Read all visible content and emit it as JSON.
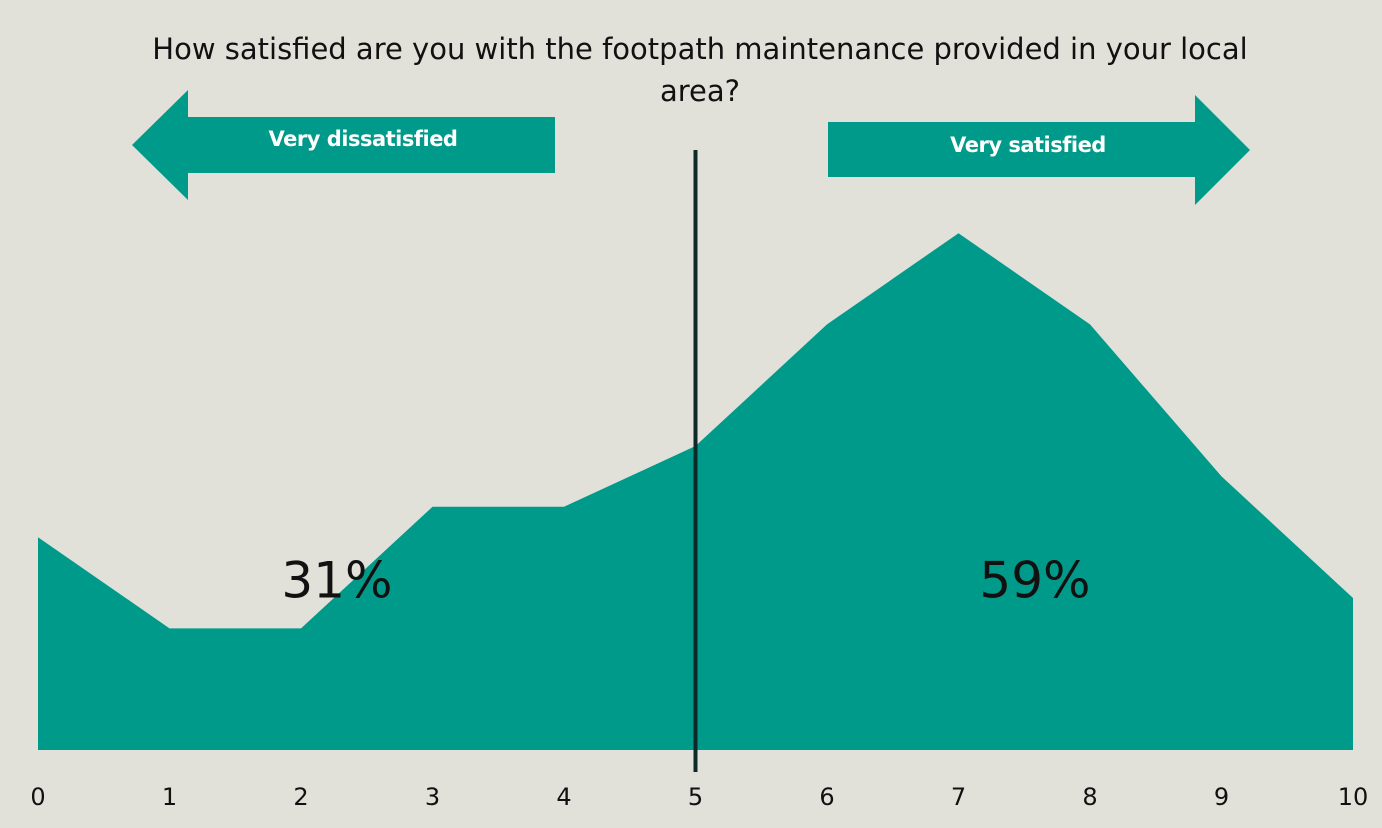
{
  "chart_data": {
    "type": "area",
    "title": "How satisfied are you with the footpath maintenance provided in your local area?",
    "x": [
      0,
      1,
      2,
      3,
      4,
      5,
      6,
      7,
      8,
      9,
      10
    ],
    "values": [
      7,
      4,
      4,
      8,
      8,
      10,
      14,
      17,
      14,
      9,
      5
    ],
    "color": "#009a8a",
    "xlim": [
      0,
      10
    ],
    "xticks": [
      0,
      1,
      2,
      3,
      4,
      5,
      6,
      7,
      8,
      9,
      10
    ],
    "ylim": [
      0,
      20
    ],
    "annotations": [
      "Very dissatisfied",
      "Very satisfied",
      "31%",
      "59%"
    ]
  }
}
